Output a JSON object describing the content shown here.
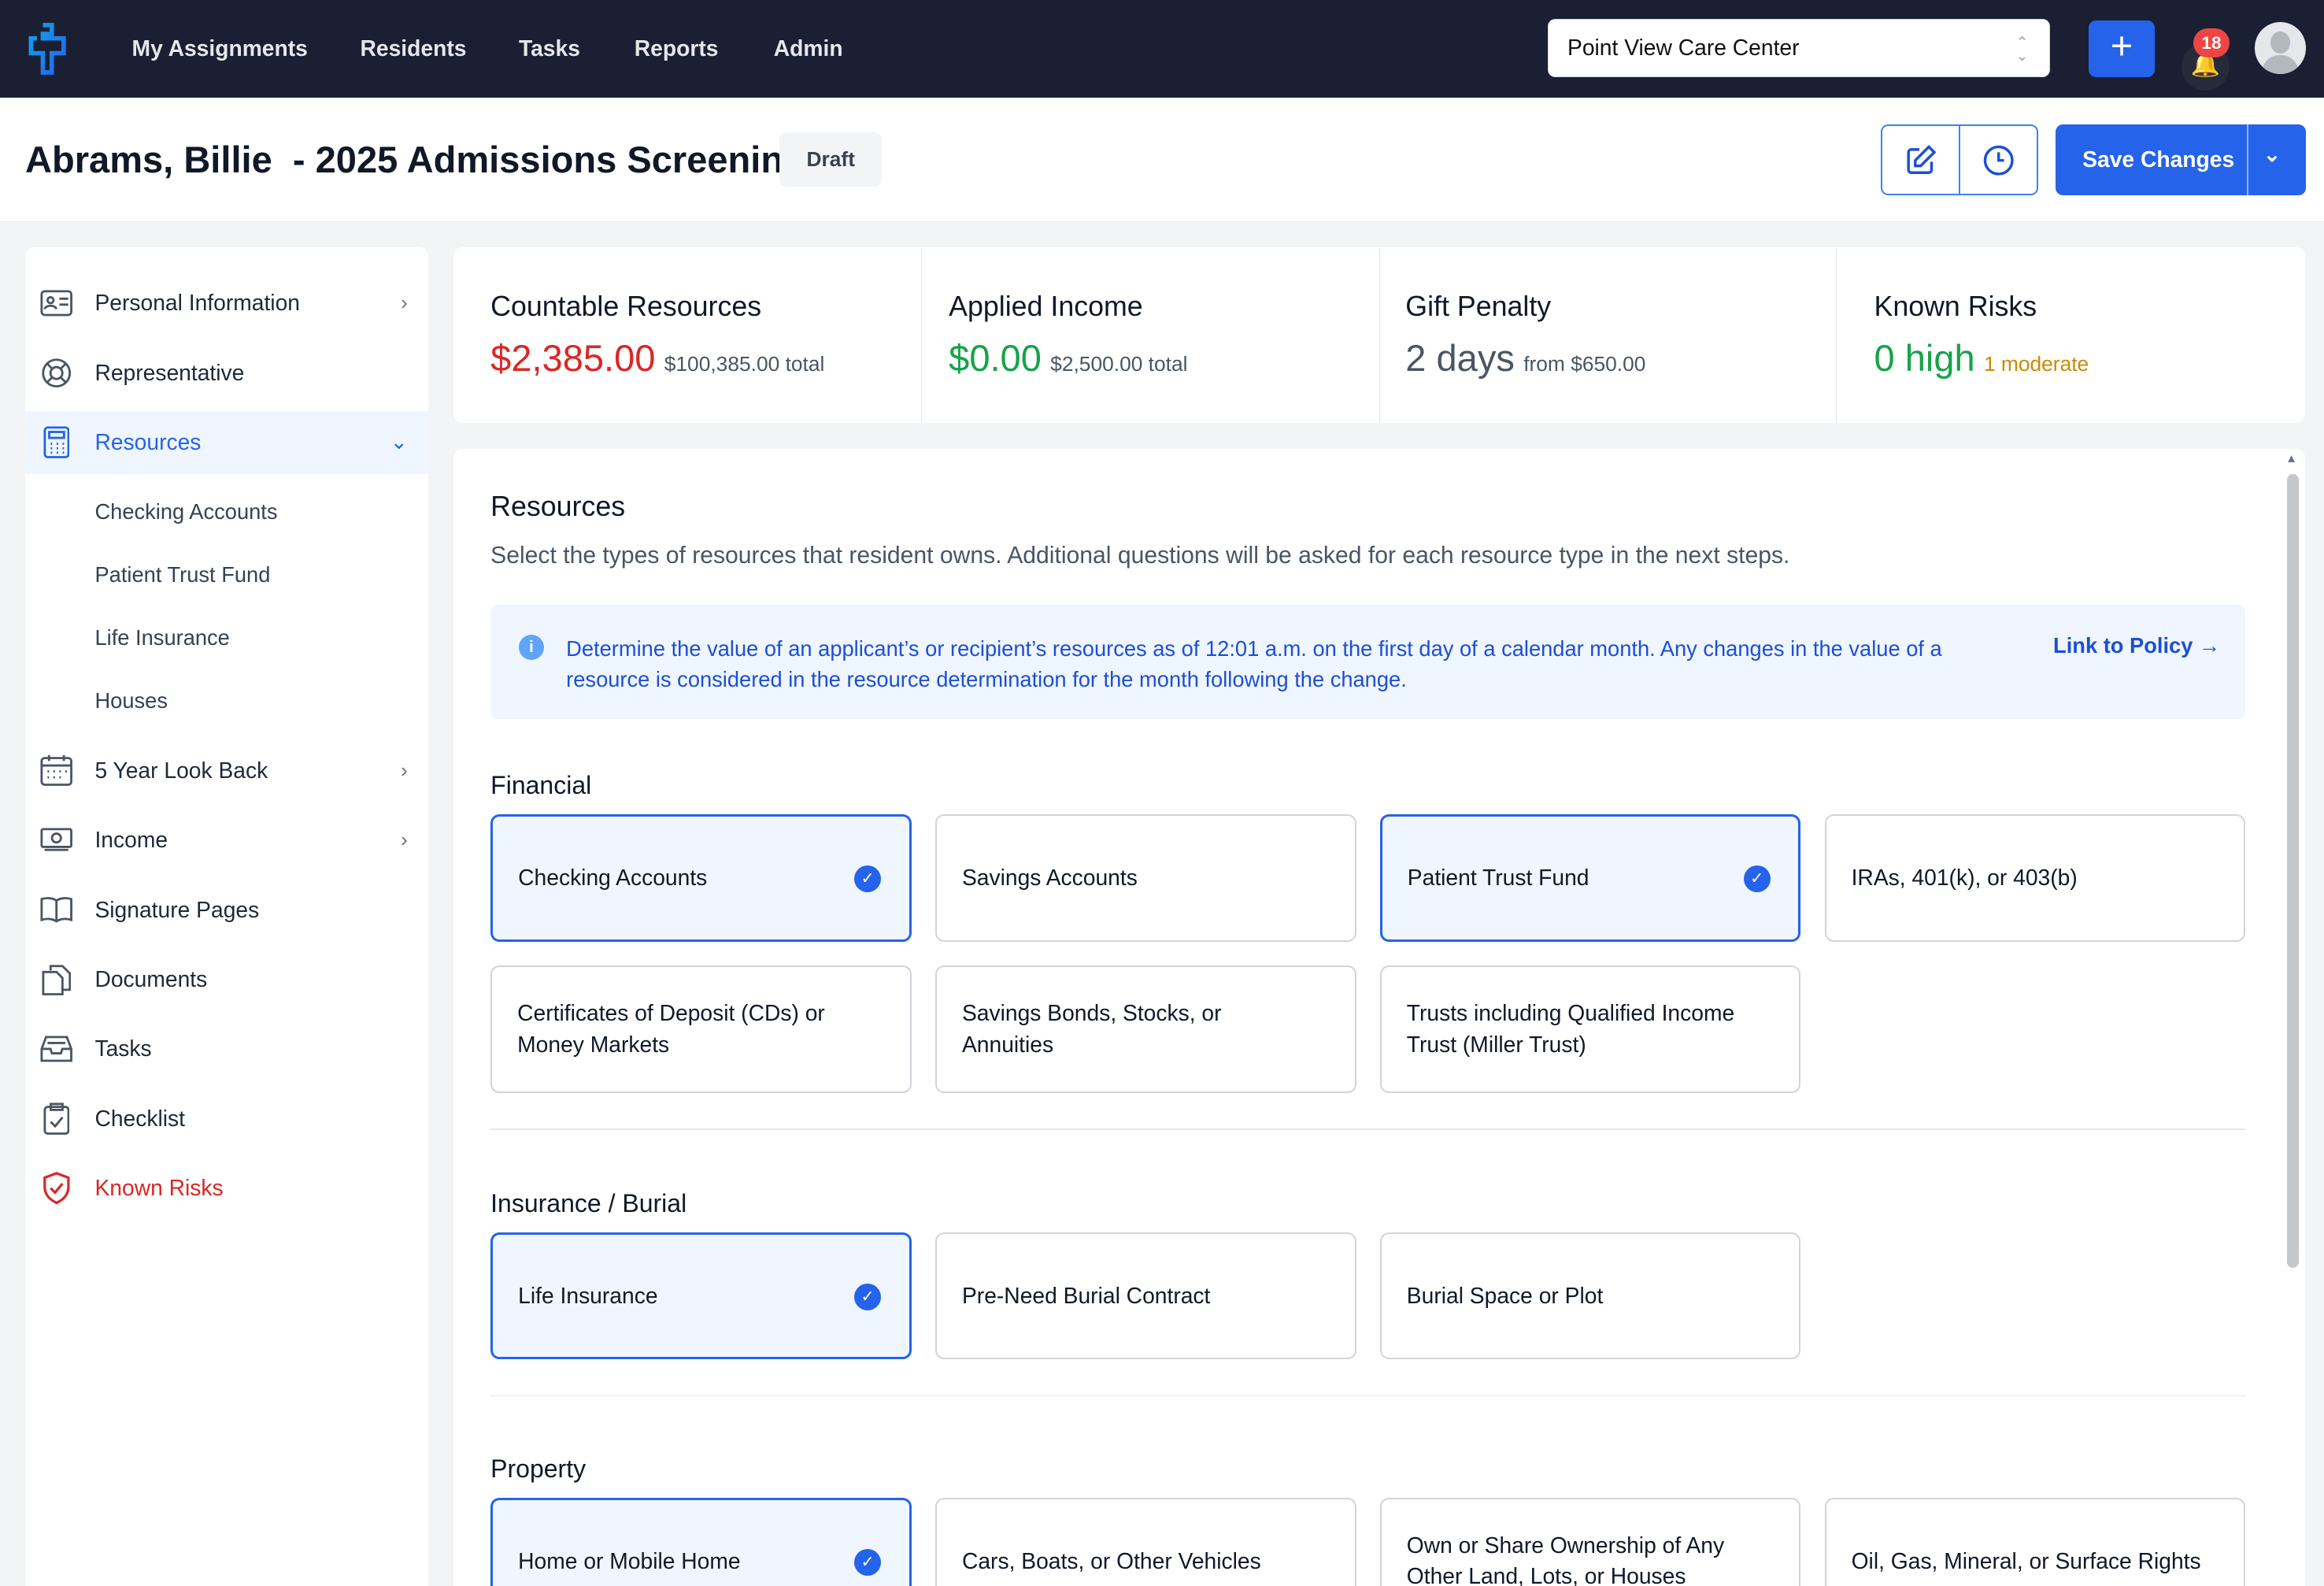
{
  "topbar": {
    "nav": [
      "My Assignments",
      "Residents",
      "Tasks",
      "Reports",
      "Admin"
    ],
    "facility": "Point View Care Center",
    "notification_count": "18",
    "accent": "#2563eb"
  },
  "header": {
    "title": "Abrams, Billie  - 2025 Admissions Screening",
    "status": "Draft",
    "save_label": "Save Changes"
  },
  "sidebar": {
    "items": [
      {
        "label": "Personal Information",
        "icon": "id-card-icon"
      },
      {
        "label": "Representative",
        "icon": "lifebuoy-icon"
      },
      {
        "label": "Resources",
        "icon": "calculator-icon"
      },
      {
        "label": "5 Year Look Back",
        "icon": "calendar-icon"
      },
      {
        "label": "Income",
        "icon": "cash-icon"
      },
      {
        "label": "Signature Pages",
        "icon": "book-icon"
      },
      {
        "label": "Documents",
        "icon": "documents-icon"
      },
      {
        "label": "Tasks",
        "icon": "inbox-icon"
      },
      {
        "label": "Checklist",
        "icon": "clipboard-check-icon"
      },
      {
        "label": "Known Risks",
        "icon": "shield-check-icon"
      }
    ],
    "subitems": [
      "Checking Accounts",
      "Patient Trust Fund",
      "Life Insurance",
      "Houses"
    ]
  },
  "stats": [
    {
      "title": "Countable Resources",
      "value": "$2,385.00",
      "detail": "$100,385.00 total",
      "color": "#dc2626"
    },
    {
      "title": "Applied Income",
      "value": "$0.00",
      "detail": "$2,500.00 total",
      "color": "#16a34a"
    },
    {
      "title": "Gift Penalty",
      "value": "2 days",
      "detail": "from $650.00",
      "color": "#4b5563"
    },
    {
      "title": "Known Risks",
      "value": "0 high",
      "detail": "1 moderate",
      "color": "#16a34a",
      "detail_color": "#ca8a04"
    }
  ],
  "panel": {
    "title": "Resources",
    "description": "Select the types of resources that resident owns. Additional questions will be asked for each resource type in the next steps.",
    "info": "Determine the value of an applicant’s or recipient’s resources as of 12:01 a.m. on the first day of a calendar month. Any changes in the value of a resource is considered in the resource determination for the month following the change.",
    "policy_link": "Link to Policy →",
    "sections": [
      {
        "title": "Financial",
        "options": [
          {
            "label": "Checking Accounts",
            "selected": true
          },
          {
            "label": "Savings Accounts",
            "selected": false
          },
          {
            "label": "Patient Trust Fund",
            "selected": true
          },
          {
            "label": "IRAs, 401(k), or 403(b)",
            "selected": false
          },
          {
            "label": "Certificates of Deposit (CDs) or Money Markets",
            "selected": false
          },
          {
            "label": "Savings Bonds, Stocks, or Annuities",
            "selected": false
          },
          {
            "label": "Trusts including Qualified Income Trust (Miller Trust)",
            "selected": false
          }
        ]
      },
      {
        "title": "Insurance / Burial",
        "options": [
          {
            "label": "Life Insurance",
            "selected": true
          },
          {
            "label": "Pre-Need Burial Contract",
            "selected": false
          },
          {
            "label": "Burial Space or Plot",
            "selected": false
          }
        ]
      },
      {
        "title": "Property",
        "options": [
          {
            "label": "Home or Mobile Home",
            "selected": true
          },
          {
            "label": "Cars, Boats, or Other Vehicles",
            "selected": false
          },
          {
            "label": "Own or Share Ownership of Any Other Land, Lots, or Houses",
            "selected": false
          },
          {
            "label": "Oil, Gas, Mineral, or Surface Rights",
            "selected": false
          }
        ]
      }
    ]
  }
}
